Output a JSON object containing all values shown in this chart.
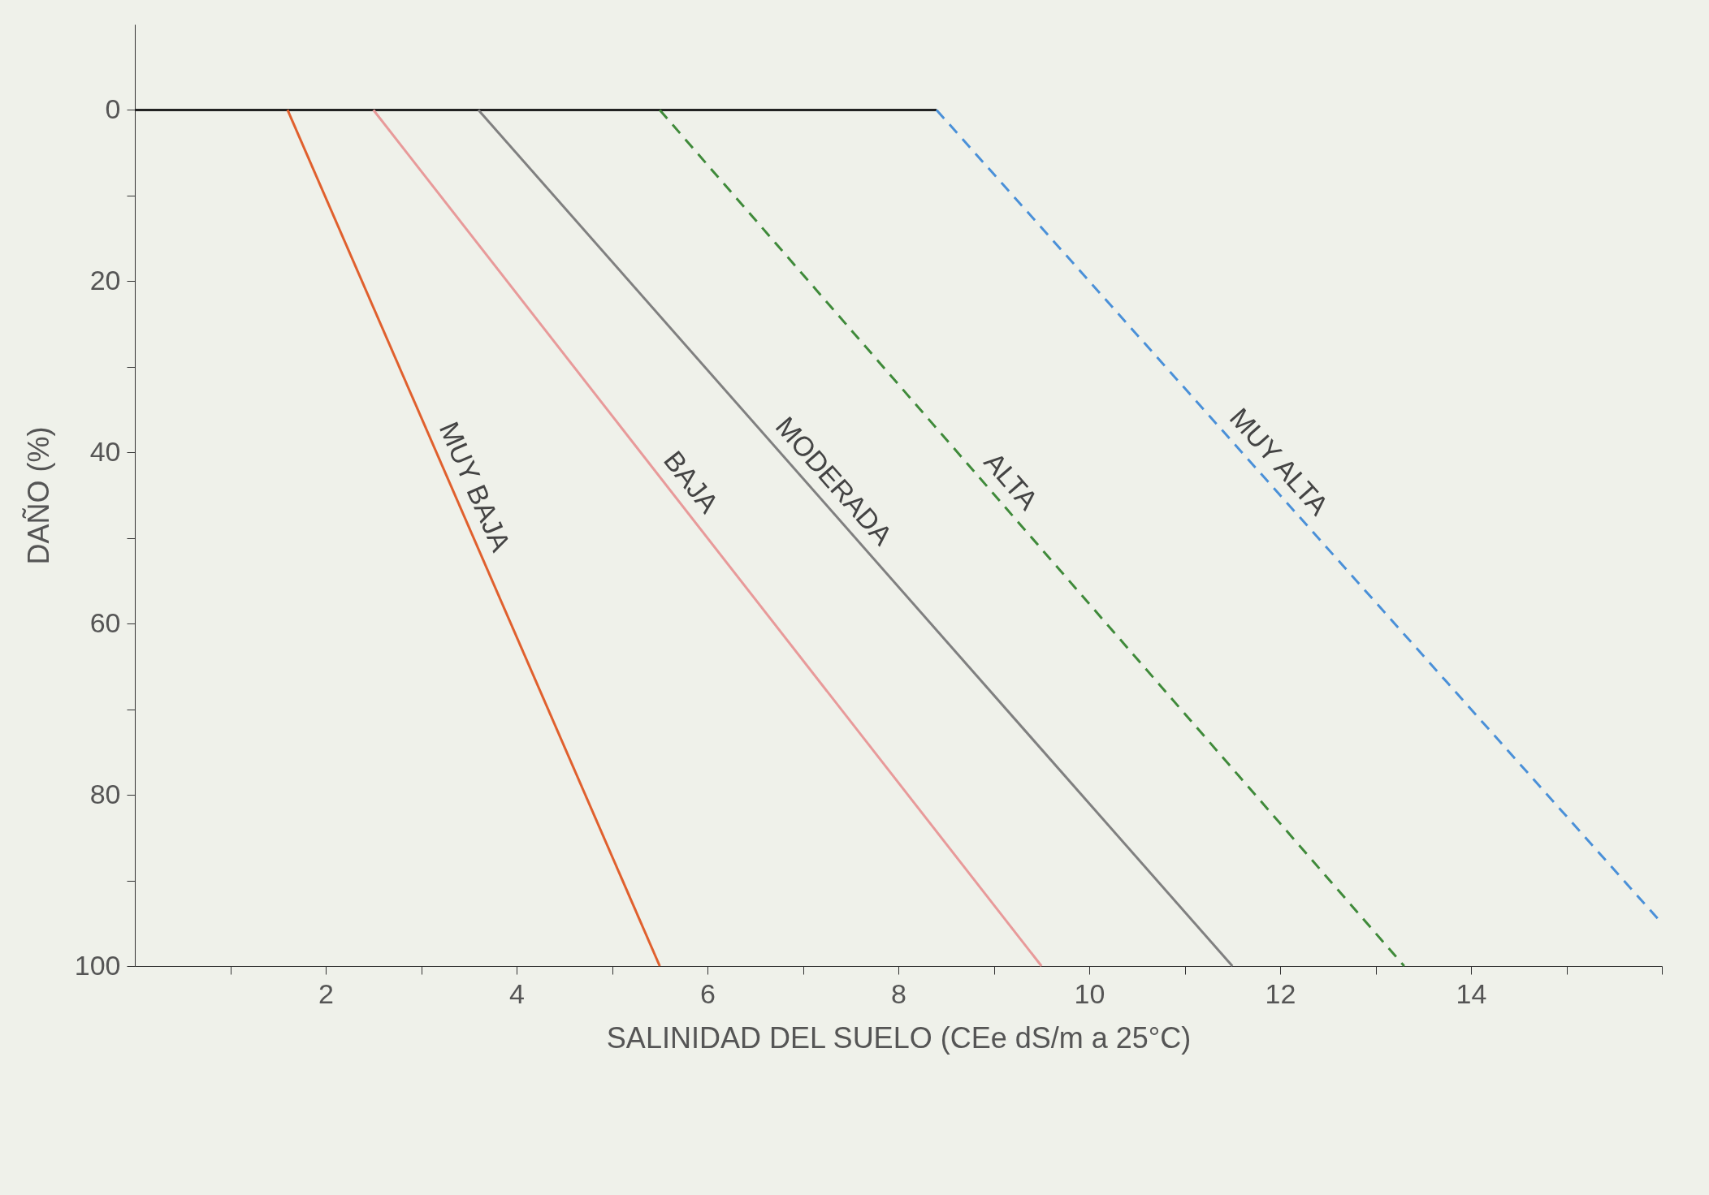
{
  "chart_data": {
    "type": "line",
    "xlabel": "SALINIDAD DEL SUELO (CEe dS/m a 25°C)",
    "ylabel": "DAÑO (%)",
    "xlim": [
      0,
      16
    ],
    "ylim": [
      100,
      -10
    ],
    "xticks": [
      {
        "value": 1,
        "label": null
      },
      2,
      {
        "value": 3,
        "label": null
      },
      4,
      {
        "value": 5,
        "label": null
      },
      6,
      {
        "value": 7,
        "label": null
      },
      8,
      {
        "value": 9,
        "label": null
      },
      10,
      {
        "value": 11,
        "label": null
      },
      12,
      {
        "value": 13,
        "label": null
      },
      14,
      {
        "value": 15,
        "label": null
      },
      {
        "value": 16,
        "label": null
      }
    ],
    "yticks": [
      0,
      {
        "value": 10,
        "label": null
      },
      20,
      {
        "value": 30,
        "label": null
      },
      40,
      {
        "value": 50,
        "label": null
      },
      60,
      {
        "value": 70,
        "label": null
      },
      80,
      {
        "value": 90,
        "label": null
      },
      100
    ],
    "grid": false,
    "marker": "none",
    "series": [
      {
        "color": "#222222",
        "line_style": "solid",
        "x": [
          0,
          8.4
        ],
        "values": [
          0,
          0
        ]
      },
      {
        "name": "MUY BAJA",
        "color": "#e0602e",
        "line_style": "solid",
        "x": [
          1.6,
          5.5
        ],
        "values": [
          0,
          100
        ]
      },
      {
        "name": "BAJA",
        "color": "#e89a9a",
        "line_style": "solid",
        "x": [
          2.5,
          9.5
        ],
        "values": [
          0,
          100
        ]
      },
      {
        "name": "MODERADA",
        "color": "#808080",
        "line_style": "solid",
        "x": [
          3.6,
          11.5
        ],
        "values": [
          0,
          100
        ]
      },
      {
        "name": "ALTA",
        "color": "#3f8a3a",
        "line_style": "dashed",
        "x": [
          5.5,
          13.3
        ],
        "values": [
          0,
          100
        ]
      },
      {
        "name": "MUY ALTA",
        "color": "#4a90d8",
        "line_style": "dashed",
        "x": [
          8.4,
          16
        ],
        "values": [
          0,
          95
        ]
      }
    ]
  }
}
